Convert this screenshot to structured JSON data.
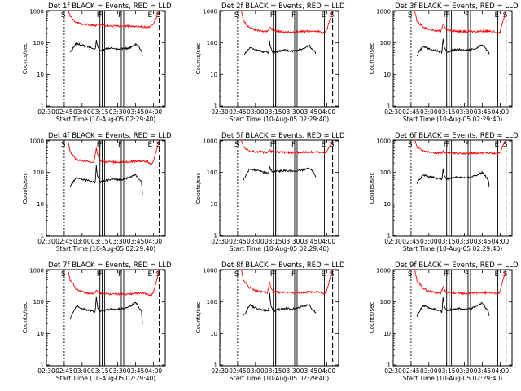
{
  "chart_data": [
    {
      "type": "line",
      "title": "Det 1f BLACK = Events, RED = LLD",
      "xlabel": "Start Time (10-Aug-05 02:29:40)",
      "ylabel": "Counts/sec",
      "x_ticks": [
        "02:30",
        "02:45",
        "03:00",
        "03:15",
        "03:30",
        "03:45",
        "04:00"
      ],
      "y_ticks": [
        "1",
        "10",
        "100",
        "1000"
      ],
      "yscale": "log",
      "ylim": [
        1,
        1100
      ],
      "markers": [
        "S",
        "F",
        "F",
        "F",
        "E",
        "S"
      ],
      "series": [
        {
          "color": "#ff0000",
          "x": [
            "02:48",
            "02:50",
            "02:55",
            "03:00",
            "03:05",
            "03:10",
            "03:12",
            "03:13",
            "03:15",
            "03:20",
            "03:30",
            "03:40",
            "03:50",
            "03:55",
            "03:57",
            "04:00",
            "04:03",
            "04:05"
          ],
          "y": [
            1100,
            700,
            450,
            400,
            380,
            360,
            360,
            400,
            380,
            350,
            340,
            340,
            330,
            310,
            320,
            380,
            700,
            1100
          ]
        },
        {
          "color": "#000000",
          "x": [
            "02:50",
            "02:55",
            "03:00",
            "03:05",
            "03:10",
            "03:11",
            "03:12",
            "03:13",
            "03:15",
            "03:20",
            "03:25",
            "03:30",
            "03:35",
            "03:40",
            "03:45",
            "03:48",
            "03:50",
            "03:51"
          ],
          "y": [
            50,
            95,
            85,
            75,
            68,
            60,
            120,
            80,
            55,
            65,
            70,
            65,
            65,
            70,
            90,
            75,
            55,
            35
          ]
        }
      ]
    },
    {
      "type": "line",
      "title": "Det 2f BLACK = Events, RED = LLD",
      "xlabel": "Start Time (10-Aug-05 02:29:40)",
      "ylabel": "Counts/sec",
      "x_ticks": [
        "02:30",
        "02:45",
        "03:00",
        "03:15",
        "03:30",
        "03:45",
        "04:00"
      ],
      "y_ticks": [
        "1",
        "10",
        "100",
        "1000"
      ],
      "yscale": "log",
      "ylim": [
        1,
        1100
      ],
      "markers": [
        "S",
        "F",
        "F",
        "F",
        "E",
        "S"
      ],
      "series": [
        {
          "color": "#ff0000",
          "x": [
            "02:48",
            "02:50",
            "02:55",
            "03:00",
            "03:05",
            "03:10",
            "03:12",
            "03:13",
            "03:15",
            "03:20",
            "03:30",
            "03:40",
            "03:50",
            "03:55",
            "03:58",
            "04:00",
            "04:03",
            "04:05"
          ],
          "y": [
            1100,
            500,
            300,
            260,
            240,
            230,
            330,
            300,
            250,
            230,
            220,
            230,
            240,
            230,
            200,
            260,
            600,
            1100
          ]
        },
        {
          "color": "#000000",
          "x": [
            "02:50",
            "02:55",
            "03:00",
            "03:05",
            "03:10",
            "03:11",
            "03:12",
            "03:13",
            "03:15",
            "03:20",
            "03:25",
            "03:30",
            "03:35",
            "03:40",
            "03:45",
            "03:48",
            "03:50",
            "03:51"
          ],
          "y": [
            40,
            70,
            60,
            55,
            50,
            45,
            110,
            65,
            50,
            55,
            60,
            55,
            58,
            65,
            85,
            60,
            55,
            40
          ]
        }
      ]
    },
    {
      "type": "line",
      "title": "Det 3f BLACK = Events, RED = LLD",
      "xlabel": "Start Time (10-Aug-05 02:29:40)",
      "ylabel": "Counts/sec",
      "x_ticks": [
        "02:30",
        "02:45",
        "03:00",
        "03:15",
        "03:30",
        "03:45",
        "04:00"
      ],
      "y_ticks": [
        "1",
        "10",
        "100",
        "1000"
      ],
      "yscale": "log",
      "ylim": [
        1,
        1100
      ],
      "markers": [
        "S",
        "F",
        "F",
        "F",
        "E",
        "S"
      ],
      "series": [
        {
          "color": "#ff0000",
          "x": [
            "02:48",
            "02:50",
            "02:55",
            "03:00",
            "03:05",
            "03:10",
            "03:12",
            "03:13",
            "03:15",
            "03:20",
            "03:30",
            "03:40",
            "03:50",
            "03:55",
            "03:58",
            "04:00",
            "04:03",
            "04:05"
          ],
          "y": [
            1100,
            500,
            320,
            270,
            250,
            240,
            400,
            330,
            260,
            240,
            230,
            230,
            240,
            230,
            190,
            230,
            600,
            1100
          ]
        },
        {
          "color": "#000000",
          "x": [
            "02:50",
            "02:55",
            "03:00",
            "03:05",
            "03:10",
            "03:11",
            "03:12",
            "03:13",
            "03:15",
            "03:20",
            "03:25",
            "03:30",
            "03:35",
            "03:40",
            "03:45",
            "03:48",
            "03:50",
            "03:51"
          ],
          "y": [
            40,
            80,
            65,
            58,
            52,
            48,
            140,
            70,
            52,
            58,
            62,
            58,
            60,
            68,
            90,
            65,
            55,
            42
          ]
        }
      ]
    },
    {
      "type": "line",
      "title": "Det 4f BLACK = Events, RED = LLD",
      "xlabel": "Start Time (10-Aug-05 02:29:40)",
      "ylabel": "Counts/sec",
      "x_ticks": [
        "02:30",
        "02:45",
        "03:00",
        "03:15",
        "03:30",
        "03:45",
        "04:00"
      ],
      "y_ticks": [
        "1",
        "10",
        "100",
        "1000"
      ],
      "yscale": "log",
      "ylim": [
        1,
        1100
      ],
      "markers": [
        "S",
        "F",
        "F",
        "F",
        "E",
        "S"
      ],
      "series": [
        {
          "color": "#ff0000",
          "x": [
            "02:48",
            "02:50",
            "02:55",
            "03:00",
            "03:05",
            "03:10",
            "03:12",
            "03:13",
            "03:15",
            "03:20",
            "03:30",
            "03:40",
            "03:50",
            "03:55",
            "03:58",
            "04:00",
            "04:03",
            "04:05"
          ],
          "y": [
            1100,
            450,
            260,
            230,
            220,
            210,
            600,
            380,
            240,
            220,
            210,
            220,
            230,
            220,
            180,
            230,
            550,
            1100
          ]
        },
        {
          "color": "#000000",
          "x": [
            "02:50",
            "02:55",
            "03:00",
            "03:05",
            "03:10",
            "03:11",
            "03:12",
            "03:13",
            "03:15",
            "03:20",
            "03:25",
            "03:30",
            "03:35",
            "03:40",
            "03:45",
            "03:48",
            "03:50",
            "03:51"
          ],
          "y": [
            35,
            70,
            60,
            55,
            50,
            45,
            160,
            75,
            50,
            55,
            60,
            58,
            60,
            70,
            85,
            60,
            50,
            16
          ]
        }
      ]
    },
    {
      "type": "line",
      "title": "Det 5f BLACK = Events, RED = LLD",
      "xlabel": "Start Time (10-Aug-05 02:29:40)",
      "ylabel": "Counts/sec",
      "x_ticks": [
        "02:30",
        "02:45",
        "03:00",
        "03:15",
        "03:30",
        "03:45",
        "04:00"
      ],
      "y_ticks": [
        "1",
        "10",
        "100",
        "1000"
      ],
      "yscale": "log",
      "ylim": [
        1,
        1100
      ],
      "markers": [
        "S",
        "F",
        "F",
        "F",
        "E",
        "S"
      ],
      "series": [
        {
          "color": "#ff0000",
          "x": [
            "02:48",
            "02:50",
            "02:55",
            "03:00",
            "03:05",
            "03:10",
            "03:12",
            "03:13",
            "03:15",
            "03:20",
            "03:30",
            "03:40",
            "03:50",
            "03:55",
            "03:58",
            "04:00",
            "04:03",
            "04:05"
          ],
          "y": [
            1100,
            650,
            480,
            450,
            440,
            430,
            520,
            470,
            450,
            440,
            430,
            440,
            450,
            440,
            410,
            450,
            750,
            1100
          ]
        },
        {
          "color": "#000000",
          "x": [
            "02:50",
            "02:55",
            "03:00",
            "03:05",
            "03:10",
            "03:11",
            "03:12",
            "03:13",
            "03:15",
            "03:20",
            "03:25",
            "03:30",
            "03:35",
            "03:40",
            "03:45",
            "03:48",
            "03:50",
            "03:51"
          ],
          "y": [
            60,
            130,
            120,
            105,
            95,
            90,
            150,
            120,
            105,
            110,
            115,
            110,
            112,
            120,
            140,
            110,
            90,
            65
          ]
        }
      ]
    },
    {
      "type": "line",
      "title": "Det 6f BLACK = Events, RED = LLD",
      "xlabel": "Start Time (10-Aug-05 02:29:40)",
      "ylabel": "Counts/sec",
      "x_ticks": [
        "02:30",
        "02:45",
        "03:00",
        "03:15",
        "03:30",
        "03:45",
        "04:00"
      ],
      "y_ticks": [
        "1",
        "10",
        "100",
        "1000"
      ],
      "yscale": "log",
      "ylim": [
        1,
        1100
      ],
      "markers": [
        "S",
        "F",
        "F",
        "F",
        "E",
        "S"
      ],
      "series": [
        {
          "color": "#ff0000",
          "x": [
            "02:48",
            "02:50",
            "02:55",
            "03:00",
            "03:05",
            "03:10",
            "03:12",
            "03:13",
            "03:15",
            "03:20",
            "03:30",
            "03:40",
            "03:50",
            "03:55",
            "03:58",
            "04:00",
            "04:03",
            "04:05"
          ],
          "y": [
            1100,
            650,
            480,
            440,
            420,
            410,
            470,
            440,
            420,
            410,
            400,
            410,
            420,
            410,
            400,
            440,
            800,
            1100
          ]
        },
        {
          "color": "#000000",
          "x": [
            "02:50",
            "02:55",
            "03:00",
            "03:05",
            "03:10",
            "03:11",
            "03:12",
            "03:13",
            "03:15",
            "03:20",
            "03:25",
            "03:30",
            "03:35",
            "03:40",
            "03:45",
            "03:48",
            "03:50",
            "03:51"
          ],
          "y": [
            45,
            85,
            75,
            68,
            62,
            58,
            130,
            80,
            62,
            68,
            72,
            68,
            70,
            80,
            100,
            75,
            60,
            30
          ]
        }
      ]
    },
    {
      "type": "line",
      "title": "Det 7f BLACK = Events, RED = LLD",
      "xlabel": "Start Time (10-Aug-05 02:29:40)",
      "ylabel": "Counts/sec",
      "x_ticks": [
        "02:30",
        "02:45",
        "03:00",
        "03:15",
        "03:30",
        "03:45",
        "04:00"
      ],
      "y_ticks": [
        "1",
        "10",
        "100",
        "1000"
      ],
      "yscale": "log",
      "ylim": [
        1,
        1100
      ],
      "markers": [
        "S",
        "F",
        "F",
        "F",
        "E",
        "S"
      ],
      "series": [
        {
          "color": "#ff0000",
          "x": [
            "02:48",
            "02:50",
            "02:55",
            "03:00",
            "03:05",
            "03:10",
            "03:12",
            "03:13",
            "03:15",
            "03:20",
            "03:30",
            "03:40",
            "03:50",
            "03:55",
            "03:58",
            "04:00",
            "04:03",
            "04:05"
          ],
          "y": [
            1100,
            500,
            260,
            210,
            190,
            180,
            230,
            210,
            190,
            180,
            175,
            180,
            190,
            180,
            160,
            200,
            550,
            1100
          ]
        },
        {
          "color": "#000000",
          "x": [
            "02:50",
            "02:55",
            "03:00",
            "03:05",
            "03:10",
            "03:11",
            "03:12",
            "03:13",
            "03:15",
            "03:20",
            "03:25",
            "03:30",
            "03:35",
            "03:40",
            "03:45",
            "03:48",
            "03:50",
            "03:51"
          ],
          "y": [
            30,
            75,
            62,
            55,
            50,
            45,
            150,
            70,
            50,
            55,
            60,
            58,
            62,
            72,
            95,
            65,
            50,
            16
          ]
        }
      ]
    },
    {
      "type": "line",
      "title": "Det 8f BLACK = Events, RED = LLD",
      "xlabel": "Start Time (10-Aug-05 02:29:40)",
      "ylabel": "Counts/sec",
      "x_ticks": [
        "02:30",
        "02:45",
        "03:00",
        "03:15",
        "03:30",
        "03:45",
        "04:00"
      ],
      "y_ticks": [
        "1",
        "10",
        "100",
        "1000"
      ],
      "yscale": "log",
      "ylim": [
        1,
        1100
      ],
      "markers": [
        "S",
        "F",
        "F",
        "F",
        "E",
        "S"
      ],
      "series": [
        {
          "color": "#ff0000",
          "x": [
            "02:48",
            "02:50",
            "02:55",
            "03:00",
            "03:05",
            "03:10",
            "03:12",
            "03:13",
            "03:15",
            "03:20",
            "03:30",
            "03:40",
            "03:50",
            "03:55",
            "03:58",
            "04:00",
            "04:03",
            "04:05"
          ],
          "y": [
            1100,
            480,
            280,
            230,
            210,
            200,
            420,
            300,
            210,
            200,
            195,
            200,
            210,
            200,
            180,
            230,
            600,
            1100
          ]
        },
        {
          "color": "#000000",
          "x": [
            "02:50",
            "02:55",
            "03:00",
            "03:05",
            "03:10",
            "03:11",
            "03:12",
            "03:13",
            "03:15",
            "03:20",
            "03:25",
            "03:30",
            "03:35",
            "03:40",
            "03:45",
            "03:48",
            "03:50",
            "03:51"
          ],
          "y": [
            35,
            80,
            65,
            58,
            52,
            48,
            200,
            75,
            52,
            58,
            62,
            60,
            63,
            72,
            85,
            55,
            48,
            40
          ]
        }
      ]
    },
    {
      "type": "line",
      "title": "Det 9f BLACK = Events, RED = LLD",
      "xlabel": "Start Time (10-Aug-05 02:29:40)",
      "ylabel": "Counts/sec",
      "x_ticks": [
        "02:30",
        "02:45",
        "03:00",
        "03:15",
        "03:30",
        "03:45",
        "04:00"
      ],
      "y_ticks": [
        "1",
        "10",
        "100",
        "1000"
      ],
      "yscale": "log",
      "ylim": [
        1,
        1100
      ],
      "markers": [
        "S",
        "F",
        "F",
        "F",
        "E",
        "S"
      ],
      "series": [
        {
          "color": "#ff0000",
          "x": [
            "02:48",
            "02:50",
            "02:55",
            "03:00",
            "03:05",
            "03:10",
            "03:12",
            "03:13",
            "03:15",
            "03:20",
            "03:30",
            "03:40",
            "03:50",
            "03:55",
            "03:58",
            "04:00",
            "04:03",
            "04:05"
          ],
          "y": [
            1100,
            480,
            270,
            220,
            200,
            190,
            300,
            240,
            200,
            195,
            190,
            195,
            200,
            195,
            175,
            220,
            600,
            1100
          ]
        },
        {
          "color": "#000000",
          "x": [
            "02:50",
            "02:55",
            "03:00",
            "03:05",
            "03:10",
            "03:11",
            "03:12",
            "03:13",
            "03:15",
            "03:20",
            "03:25",
            "03:30",
            "03:35",
            "03:40",
            "03:45",
            "03:48",
            "03:50",
            "03:51"
          ],
          "y": [
            35,
            78,
            65,
            58,
            52,
            48,
            140,
            72,
            52,
            58,
            62,
            58,
            62,
            72,
            92,
            62,
            50,
            35
          ]
        }
      ]
    }
  ]
}
